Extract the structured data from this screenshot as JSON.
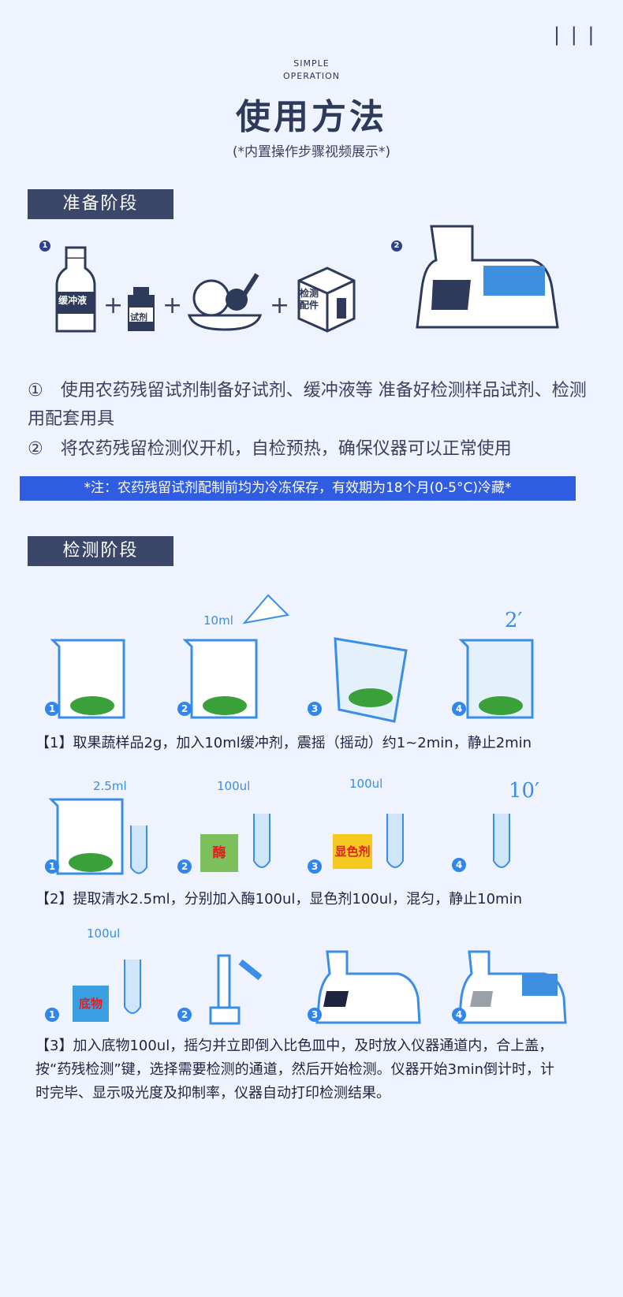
{
  "header": {
    "menu_icon": "bars-icon",
    "en_line1": "SIMPLE",
    "en_line2": "OPERATION",
    "title": "使用方法",
    "subtitle": "(*内置操作步骤视频展示*)"
  },
  "prep": {
    "label": "准备阶段",
    "bottle_label": "缓冲液",
    "reagent_label": "试剂",
    "box_label": "检测配件",
    "plus": "+",
    "num1": "1",
    "num2": "2",
    "item1": "①　使用农药残留试剂制备好试剂、缓冲液等 准备好检测样品试剂、检测用配套用具",
    "item2": "②　将农药残留检测仪开机，自检预热，确保仪器可以正常使用",
    "note": "*注：农药残留试剂配制前均为冷冻保存，有效期为18个月(0-5°C)冷藏*"
  },
  "detect": {
    "label": "检测阶段",
    "row1": {
      "vol": "10ml",
      "timer": "2′",
      "nums": [
        "1",
        "2",
        "3",
        "4"
      ],
      "caption": "【1】取果蔬样品2g，加入10ml缓冲剂，震摇（摇动）约1~2min，静止2min"
    },
    "row2": {
      "vol1": "2.5ml",
      "vol2": "100ul",
      "vol3": "100ul",
      "enzyme": "酶",
      "chromogen": "显色剂",
      "timer": "10′",
      "nums": [
        "1",
        "2",
        "3",
        "4"
      ],
      "caption": "【2】提取清水2.5ml，分别加入酶100ul，显色剂100ul，混匀，静止10min"
    },
    "row3": {
      "vol": "100ul",
      "substrate": "底物",
      "nums": [
        "1",
        "2",
        "3",
        "4"
      ],
      "caption": "【3】加入底物100ul，摇匀并立即倒入比色皿中，及时放入仪器通道内，合上盖，按“药残检测”键，选择需要检测的通道，然后开始检测。仪器开始3min倒计时，计时完毕、显示吸光度及抑制率，仪器自动打印检测结果。"
    }
  },
  "colors": {
    "navy": "#3a4768",
    "blue": "#2f5ce0",
    "accent": "#2f86f0"
  }
}
